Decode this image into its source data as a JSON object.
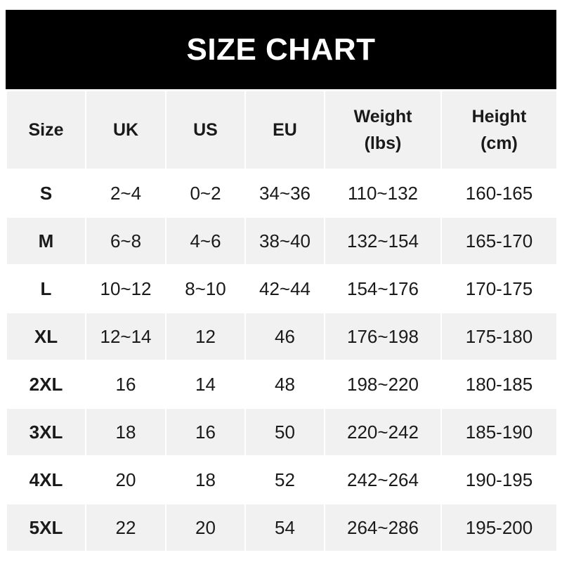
{
  "title": "SIZE CHART",
  "headers": [
    {
      "line1": "Size",
      "line2": ""
    },
    {
      "line1": "UK",
      "line2": ""
    },
    {
      "line1": "US",
      "line2": ""
    },
    {
      "line1": "EU",
      "line2": ""
    },
    {
      "line1": "Weight",
      "line2": "(lbs)"
    },
    {
      "line1": "Height",
      "line2": "(cm)"
    }
  ],
  "rows": [
    [
      "S",
      "2~4",
      "0~2",
      "34~36",
      "110~132",
      "160-165"
    ],
    [
      "M",
      "6~8",
      "4~6",
      "38~40",
      "132~154",
      "165-170"
    ],
    [
      "L",
      "10~12",
      "8~10",
      "42~44",
      "154~176",
      "170-175"
    ],
    [
      "XL",
      "12~14",
      "12",
      "46",
      "176~198",
      "175-180"
    ],
    [
      "2XL",
      "16",
      "14",
      "48",
      "198~220",
      "180-185"
    ],
    [
      "3XL",
      "18",
      "16",
      "50",
      "220~242",
      "185-190"
    ],
    [
      "4XL",
      "20",
      "18",
      "52",
      "242~264",
      "190-195"
    ],
    [
      "5XL",
      "22",
      "20",
      "54",
      "264~286",
      "195-200"
    ]
  ],
  "colors": {
    "title_bg": "#000000",
    "header_bg": "#f1f1f1",
    "stripe": "#f1f1f1"
  }
}
